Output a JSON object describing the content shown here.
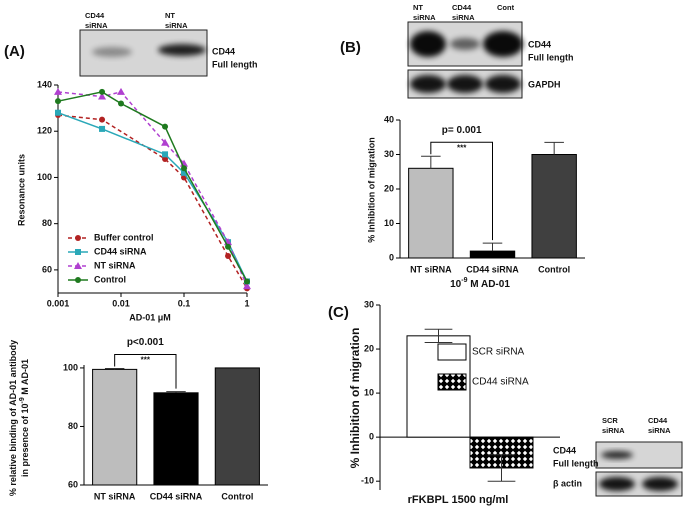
{
  "panels": {
    "a": "(A)",
    "b": "(B)",
    "c": "(C)"
  },
  "blots": {
    "a": {
      "lanes": [
        [
          "CD44",
          "siRNA"
        ],
        [
          "NT",
          "siRNA"
        ]
      ],
      "rows": [
        [
          "CD44",
          "Full length"
        ]
      ]
    },
    "b": {
      "lanes": [
        [
          "NT",
          "siRNA"
        ],
        [
          "CD44",
          "siRNA"
        ],
        [
          "Cont"
        ]
      ],
      "rows": [
        [
          "CD44",
          "Full length"
        ],
        [
          "GAPDH"
        ]
      ]
    },
    "c": {
      "lanes": [
        [
          "SCR",
          "siRNA"
        ],
        [
          "CD44",
          "siRNA"
        ]
      ],
      "rows": [
        [
          "CD44",
          "Full length"
        ],
        [
          "β  actin"
        ]
      ]
    }
  },
  "chart_data": [
    {
      "type": "line",
      "x_label": "AD-01 μM",
      "y_label": "Resonance units",
      "xscale": "log",
      "xlim": [
        0.001,
        1
      ],
      "xticks": [
        0.001,
        0.01,
        0.1,
        1
      ],
      "ylim": [
        50,
        140
      ],
      "yticks": [
        60,
        80,
        100,
        120,
        140
      ],
      "series": [
        {
          "name": "Buffer control",
          "color": "#b22222",
          "dash": true,
          "marker": "circle",
          "x": [
            0.001,
            0.005,
            0.05,
            0.1,
            0.5,
            1
          ],
          "values": [
            127,
            125,
            108,
            100,
            66,
            52
          ]
        },
        {
          "name": "CD44 siRNA",
          "color": "#2aa8b8",
          "dash": false,
          "marker": "square",
          "x": [
            0.001,
            0.005,
            0.05,
            0.1,
            0.5,
            1
          ],
          "values": [
            128,
            121,
            110,
            102,
            72,
            55
          ]
        },
        {
          "name": "NT siRNA",
          "color": "#b040d0",
          "dash": true,
          "marker": "triangle",
          "x": [
            0.001,
            0.005,
            0.01,
            0.05,
            0.1,
            0.5,
            1
          ],
          "values": [
            137,
            135,
            137,
            115,
            106,
            72,
            53
          ]
        },
        {
          "name": "Control",
          "color": "#1f7a1f",
          "dash": false,
          "marker": "circle",
          "x": [
            0.001,
            0.005,
            0.01,
            0.05,
            0.1,
            0.5,
            1
          ],
          "values": [
            133,
            137,
            132,
            122,
            104,
            70,
            55
          ]
        }
      ]
    },
    {
      "type": "bar",
      "y_label": [
        [
          "% relative binding of AD-01 antibody"
        ],
        [
          "in presence of 10",
          {
            "sup": "-9"
          },
          " M AD-01"
        ]
      ],
      "categories": [
        "NT siRNA",
        "CD44 siRNA",
        "Control"
      ],
      "values": [
        99.5,
        91.5,
        100
      ],
      "errors": [
        0.3,
        0.4,
        0
      ],
      "colors": [
        "#bdbdbd",
        "#000000",
        "#404040"
      ],
      "error_bars": "one-sided",
      "ylim": [
        60,
        101
      ],
      "yticks": [
        60,
        80,
        100
      ],
      "annotation": {
        "text": "p<0.001",
        "stars": "***"
      }
    },
    {
      "type": "bar",
      "y_label": "% Inhibition of migration",
      "x_label": [
        [
          "10",
          {
            "sup": "-9"
          },
          " M AD-01"
        ]
      ],
      "categories": [
        "NT siRNA",
        "CD44 siRNA",
        "Control"
      ],
      "values": [
        26,
        2,
        30
      ],
      "errors": [
        3.5,
        2.3,
        3.5
      ],
      "colors": [
        "#bdbdbd",
        "#000000",
        "#404040"
      ],
      "error_bars": "one-sided",
      "ylim": [
        0,
        40
      ],
      "yticks": [
        0,
        10,
        20,
        30,
        40
      ],
      "annotation": {
        "text": "p= 0.001",
        "stars": "***"
      }
    },
    {
      "type": "bar",
      "y_label": "% Inhibition of migration",
      "x_label": "rFKBPL 1500 ng/ml",
      "error_bars": "two-sided",
      "ylim": [
        -12,
        30
      ],
      "yticks": [
        -10,
        0,
        10,
        20,
        30
      ],
      "series": [
        {
          "name": "SCR siRNA",
          "color": "#ffffff",
          "hatched": false,
          "values": [
            23
          ],
          "errors": [
            1.5
          ]
        },
        {
          "name": "CD44 siRNA",
          "color": "#000000",
          "hatched": true,
          "values": [
            -7
          ],
          "errors": [
            3
          ]
        }
      ]
    }
  ]
}
